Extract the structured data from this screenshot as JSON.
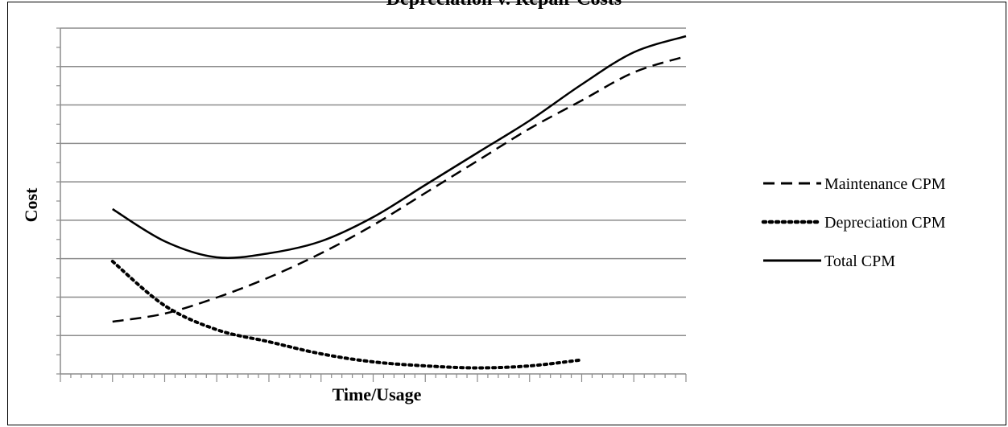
{
  "chart_data": {
    "type": "line",
    "title": "Depreciation v. Repair Costs",
    "xlabel": "Time/Usage",
    "ylabel": "Cost",
    "xlim": [
      0,
      12
    ],
    "ylim": [
      0,
      8.6
    ],
    "grid": true,
    "legend_position": "right",
    "series": [
      {
        "name": "Maintenance CPM",
        "style": "dashed",
        "x": [
          1,
          2,
          3,
          4,
          5,
          6,
          7,
          8,
          9,
          10,
          11,
          12
        ],
        "y": [
          1.3,
          1.5,
          1.9,
          2.4,
          3.0,
          3.7,
          4.5,
          5.3,
          6.1,
          6.8,
          7.5,
          7.9
        ]
      },
      {
        "name": "Depreciation CPM",
        "style": "dotted",
        "x": [
          1,
          2,
          3,
          4,
          5,
          6,
          7,
          8,
          9,
          10
        ],
        "y": [
          2.8,
          1.7,
          1.1,
          0.8,
          0.5,
          0.3,
          0.2,
          0.15,
          0.2,
          0.35
        ]
      },
      {
        "name": "Total CPM",
        "style": "solid",
        "x": [
          1,
          2,
          3,
          4,
          5,
          6,
          7,
          8,
          9,
          10,
          11,
          12
        ],
        "y": [
          4.1,
          3.3,
          2.9,
          3.0,
          3.3,
          3.9,
          4.7,
          5.5,
          6.3,
          7.2,
          8.0,
          8.4
        ]
      }
    ]
  },
  "colors": {
    "line": "#000000",
    "grid": "#8c8c8c",
    "background": "#ffffff"
  }
}
